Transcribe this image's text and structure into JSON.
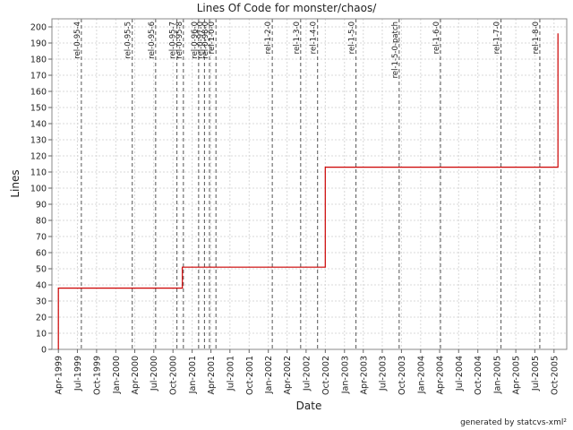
{
  "chart_data": {
    "type": "line",
    "title": "Lines Of Code for monster/chaos/",
    "xlabel": "Date",
    "ylabel": "Lines",
    "ylim": [
      0,
      205
    ],
    "xlim": [
      "1999-03-01",
      "2005-12-01"
    ],
    "grid": true,
    "legend": "none",
    "series_color": "#cc0000",
    "tag_line_color": "#555555",
    "grid_color": "#d8d8d8",
    "y_ticks": [
      0,
      10,
      20,
      30,
      40,
      50,
      60,
      70,
      80,
      90,
      100,
      110,
      120,
      130,
      140,
      150,
      160,
      170,
      180,
      190,
      200
    ],
    "x_ticks": [
      {
        "date": "1999-04-01",
        "label": "Apr-1999"
      },
      {
        "date": "1999-07-01",
        "label": "Jul-1999"
      },
      {
        "date": "1999-10-01",
        "label": "Oct-1999"
      },
      {
        "date": "2000-01-01",
        "label": "Jan-2000"
      },
      {
        "date": "2000-04-01",
        "label": "Apr-2000"
      },
      {
        "date": "2000-07-01",
        "label": "Jul-2000"
      },
      {
        "date": "2000-10-01",
        "label": "Oct-2000"
      },
      {
        "date": "2001-01-01",
        "label": "Jan-2001"
      },
      {
        "date": "2001-04-01",
        "label": "Apr-2001"
      },
      {
        "date": "2001-07-01",
        "label": "Jul-2001"
      },
      {
        "date": "2001-10-01",
        "label": "Oct-2001"
      },
      {
        "date": "2002-01-01",
        "label": "Jan-2002"
      },
      {
        "date": "2002-04-01",
        "label": "Apr-2002"
      },
      {
        "date": "2002-07-01",
        "label": "Jul-2002"
      },
      {
        "date": "2002-10-01",
        "label": "Oct-2002"
      },
      {
        "date": "2003-01-01",
        "label": "Jan-2003"
      },
      {
        "date": "2003-04-01",
        "label": "Apr-2003"
      },
      {
        "date": "2003-07-01",
        "label": "Jul-2003"
      },
      {
        "date": "2003-10-01",
        "label": "Oct-2003"
      },
      {
        "date": "2004-01-01",
        "label": "Jan-2004"
      },
      {
        "date": "2004-04-01",
        "label": "Apr-2004"
      },
      {
        "date": "2004-07-01",
        "label": "Jul-2004"
      },
      {
        "date": "2004-10-01",
        "label": "Oct-2004"
      },
      {
        "date": "2005-01-01",
        "label": "Jan-2005"
      },
      {
        "date": "2005-04-01",
        "label": "Apr-2005"
      },
      {
        "date": "2005-07-01",
        "label": "Jul-2005"
      },
      {
        "date": "2005-10-01",
        "label": "Oct-2005"
      }
    ],
    "series": [
      {
        "points": [
          {
            "x": "1999-04-01",
            "y": 0
          },
          {
            "x": "1999-04-01",
            "y": 38
          },
          {
            "x": "2000-11-15",
            "y": 38
          },
          {
            "x": "2000-11-15",
            "y": 51
          },
          {
            "x": "2002-10-01",
            "y": 51
          },
          {
            "x": "2002-10-01",
            "y": 113
          },
          {
            "x": "2005-10-20",
            "y": 113
          },
          {
            "x": "2005-10-20",
            "y": 196
          }
        ]
      }
    ],
    "tags": [
      {
        "date": "1999-07-20",
        "label": "rel-0-95-4"
      },
      {
        "date": "2000-03-20",
        "label": "rel-0-95-5"
      },
      {
        "date": "2000-07-10",
        "label": "rel-0-95-6"
      },
      {
        "date": "2000-10-20",
        "label": "rel-0-95-7"
      },
      {
        "date": "2000-11-20",
        "label": "rel-0-95-8"
      },
      {
        "date": "2001-02-01",
        "label": "rel-0-96-0"
      },
      {
        "date": "2001-03-01",
        "label": "rel-0-97-0"
      },
      {
        "date": "2001-03-25",
        "label": "rel-0-98-0"
      },
      {
        "date": "2001-04-25",
        "label": "rel-1-0-0"
      },
      {
        "date": "2002-01-20",
        "label": "rel-1-2-0"
      },
      {
        "date": "2002-06-05",
        "label": "rel-1-3-0"
      },
      {
        "date": "2002-08-25",
        "label": "rel-1-4-0"
      },
      {
        "date": "2003-02-25",
        "label": "rel-1-5-0"
      },
      {
        "date": "2003-09-20",
        "label": "rel-1-5-0-patch"
      },
      {
        "date": "2004-04-05",
        "label": "rel-1-6-0"
      },
      {
        "date": "2005-01-20",
        "label": "rel-1-7-0"
      },
      {
        "date": "2005-07-25",
        "label": "rel-1-8-0"
      }
    ]
  },
  "footer": {
    "generated_by": "generated by statcvs-xml²"
  }
}
